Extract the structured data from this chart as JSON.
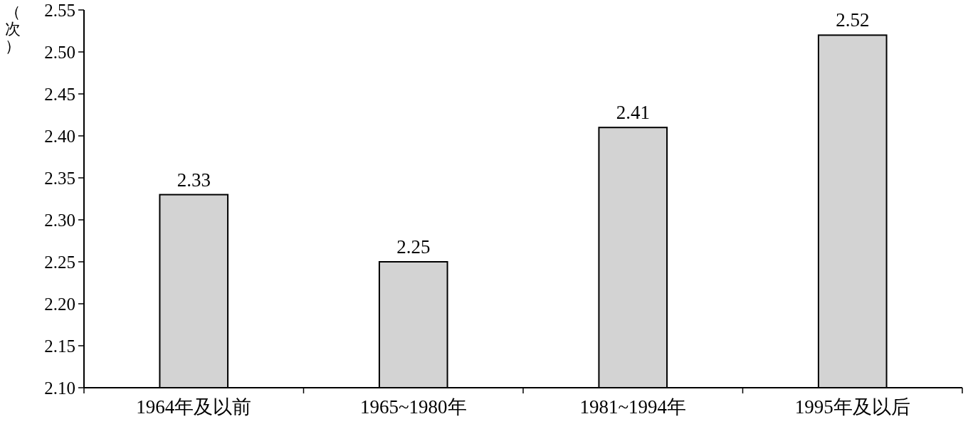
{
  "chart_data": {
    "type": "bar",
    "ylabel": "（次）",
    "categories": [
      "1964年及以前",
      "1965~1980年",
      "1981~1994年",
      "1995年及以后"
    ],
    "values": [
      2.33,
      2.25,
      2.41,
      2.52
    ],
    "color": "#d3d3d3",
    "ylim": [
      2.1,
      2.55
    ],
    "yticks": [
      {
        "value": 2.1,
        "label": "2.10"
      },
      {
        "value": 2.15,
        "label": "2.15"
      },
      {
        "value": 2.2,
        "label": "2.20"
      },
      {
        "value": 2.25,
        "label": "2.25"
      },
      {
        "value": 2.3,
        "label": "2.30"
      },
      {
        "value": 2.35,
        "label": "2.35"
      },
      {
        "value": 2.4,
        "label": "2.40"
      },
      {
        "value": 2.45,
        "label": "2.45"
      },
      {
        "value": 2.5,
        "label": "2.50"
      },
      {
        "value": 2.55,
        "label": "2.55"
      }
    ],
    "data_labels": true,
    "grid": false
  }
}
